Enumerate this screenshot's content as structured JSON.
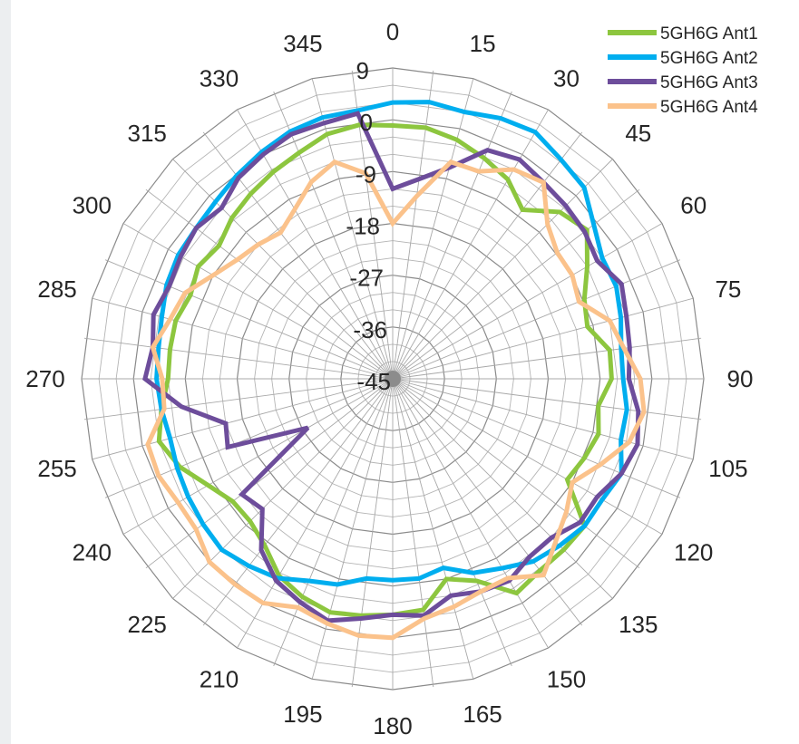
{
  "chart_data": {
    "type": "radar",
    "title": "",
    "angles": [
      "0",
      "15",
      "30",
      "45",
      "60",
      "75",
      "90",
      "105",
      "120",
      "135",
      "150",
      "165",
      "180",
      "195",
      "210",
      "225",
      "240",
      "255",
      "270",
      "285",
      "300",
      "315",
      "330",
      "345"
    ],
    "radial_ticks": [
      "9",
      "0",
      "-9",
      "-18",
      "-27",
      "-36",
      "-45"
    ],
    "rlim": [
      -45,
      9
    ],
    "grid": true,
    "legend_position": "top-right",
    "series": [
      {
        "name": "5GH6G Ant1",
        "color": "#8dc63f",
        "values": [
          -1,
          -1,
          -2,
          -3.5,
          -5,
          -8,
          -4,
          -2.5,
          -6,
          -9,
          -10,
          -7,
          -7,
          -9,
          -8,
          -9,
          -10,
          -3,
          -3,
          -3,
          -2,
          -7,
          -9,
          -4.5,
          -4,
          -3.5,
          -3,
          -4,
          -5.5,
          -8.5,
          -10,
          -10,
          -8,
          -5,
          -3,
          -4.5,
          -6,
          -6,
          -6,
          -7,
          -6,
          -7,
          -5.5,
          -4.5,
          -3.5,
          -2.5,
          -1,
          -0.5
        ]
      },
      {
        "name": "5GH6G Ant2",
        "color": "#00aeef",
        "values": [
          3,
          3.5,
          3,
          4,
          4.5,
          3,
          2,
          -1,
          -3,
          -3,
          -4,
          -5,
          -5,
          -4,
          -4,
          -2,
          -3,
          -3,
          -4,
          -5,
          -7,
          -8.5,
          -11,
          -10,
          -10,
          -10,
          -8,
          -7,
          -5,
          -4,
          -3,
          -3.5,
          -4,
          -4.5,
          -5,
          -4.5,
          -4,
          -4,
          -3.5,
          -2.5,
          -2,
          -2,
          -1.5,
          -0.5,
          0.5,
          1.5,
          2,
          2
        ]
      },
      {
        "name": "5GH6G Ant3",
        "color": "#6d4d9b",
        "values": [
          -12,
          -10,
          -7,
          -2,
          -1,
          -2,
          -2.5,
          -3,
          -4,
          -2,
          -3,
          -3.5,
          -4,
          -2,
          -1,
          -2,
          -4,
          -4,
          -6,
          -6,
          -4.5,
          -5,
          -6,
          -3.5,
          -4,
          -3,
          -1.5,
          -3,
          -4.5,
          -7.5,
          -13,
          -12,
          -28,
          -14,
          -15,
          -8,
          -2,
          -3,
          -2,
          -3,
          -2.5,
          -2,
          -3,
          -1,
          0,
          1,
          1,
          1.5
        ]
      },
      {
        "name": "5GH6G Ant4",
        "color": "#fbc28b",
        "values": [
          -18,
          -13,
          -6,
          -6,
          -3,
          -2,
          -7,
          -9,
          -9,
          -10,
          -6,
          -4.5,
          -2,
          -1,
          -2.5,
          -6,
          -9,
          -7,
          -5,
          -2,
          -5,
          -5,
          -4,
          -3,
          0,
          0,
          -1,
          -2,
          0,
          0,
          0,
          -2,
          -2,
          -1,
          -1,
          -5,
          -5,
          -3,
          -5,
          -6,
          -9,
          -11,
          -12,
          -13,
          -11,
          -8,
          -6,
          -9
        ]
      }
    ]
  }
}
